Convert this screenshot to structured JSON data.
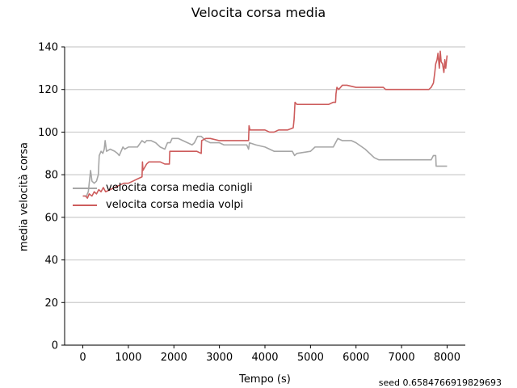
{
  "chart_data": {
    "type": "line",
    "title": "Velocita corsa media",
    "xlabel": "Tempo (s)",
    "ylabel": "media velocità corsa",
    "xlim": [
      -400,
      8400
    ],
    "ylim": [
      0,
      140
    ],
    "xticks": [
      0,
      1000,
      2000,
      3000,
      4000,
      5000,
      6000,
      7000,
      8000
    ],
    "yticks": [
      0,
      20,
      40,
      60,
      80,
      100,
      120,
      140
    ],
    "grid": "horizontal",
    "legend_position": "center-left",
    "annotation": "seed 0.6584766919829693",
    "series": [
      {
        "name": "velocita corsa media conigli",
        "color": "#a6a6a6",
        "points": [
          [
            0,
            70
          ],
          [
            80,
            70
          ],
          [
            120,
            72
          ],
          [
            150,
            78
          ],
          [
            170,
            82
          ],
          [
            200,
            77
          ],
          [
            250,
            76
          ],
          [
            300,
            77
          ],
          [
            340,
            80
          ],
          [
            360,
            89
          ],
          [
            400,
            91
          ],
          [
            440,
            90
          ],
          [
            470,
            92
          ],
          [
            490,
            96
          ],
          [
            520,
            91
          ],
          [
            600,
            92
          ],
          [
            700,
            91
          ],
          [
            760,
            90
          ],
          [
            800,
            89
          ],
          [
            840,
            91
          ],
          [
            880,
            93
          ],
          [
            920,
            92
          ],
          [
            1000,
            93
          ],
          [
            1100,
            93
          ],
          [
            1200,
            93
          ],
          [
            1300,
            96
          ],
          [
            1360,
            95
          ],
          [
            1400,
            96
          ],
          [
            1500,
            96
          ],
          [
            1600,
            95
          ],
          [
            1700,
            93
          ],
          [
            1800,
            92
          ],
          [
            1860,
            95
          ],
          [
            1920,
            95
          ],
          [
            1960,
            97
          ],
          [
            2100,
            97
          ],
          [
            2200,
            96
          ],
          [
            2300,
            95
          ],
          [
            2400,
            94
          ],
          [
            2450,
            95
          ],
          [
            2520,
            98
          ],
          [
            2600,
            98
          ],
          [
            2650,
            97
          ],
          [
            2700,
            96
          ],
          [
            2800,
            95
          ],
          [
            3000,
            95
          ],
          [
            3100,
            94
          ],
          [
            3200,
            94
          ],
          [
            3600,
            94
          ],
          [
            3640,
            92
          ],
          [
            3660,
            95
          ],
          [
            3800,
            94
          ],
          [
            4000,
            93
          ],
          [
            4200,
            91
          ],
          [
            4400,
            91
          ],
          [
            4600,
            91
          ],
          [
            4650,
            89
          ],
          [
            4700,
            90
          ],
          [
            5000,
            91
          ],
          [
            5100,
            93
          ],
          [
            5300,
            93
          ],
          [
            5500,
            93
          ],
          [
            5600,
            97
          ],
          [
            5700,
            96
          ],
          [
            5900,
            96
          ],
          [
            6000,
            95
          ],
          [
            6200,
            92
          ],
          [
            6400,
            88
          ],
          [
            6500,
            87
          ],
          [
            6700,
            87
          ],
          [
            7000,
            87
          ],
          [
            7300,
            87
          ],
          [
            7650,
            87
          ],
          [
            7700,
            89
          ],
          [
            7750,
            89
          ],
          [
            7760,
            84
          ],
          [
            7900,
            84
          ],
          [
            8000,
            84
          ]
        ]
      },
      {
        "name": "velocita corsa media volpi",
        "color": "#cd5c5c",
        "points": [
          [
            0,
            70
          ],
          [
            60,
            70
          ],
          [
            100,
            69
          ],
          [
            140,
            71
          ],
          [
            200,
            70
          ],
          [
            250,
            72
          ],
          [
            300,
            71
          ],
          [
            350,
            73
          ],
          [
            400,
            72
          ],
          [
            450,
            74
          ],
          [
            500,
            72
          ],
          [
            600,
            73
          ],
          [
            700,
            74
          ],
          [
            800,
            75
          ],
          [
            900,
            76
          ],
          [
            1000,
            76
          ],
          [
            1100,
            77
          ],
          [
            1200,
            78
          ],
          [
            1300,
            79
          ],
          [
            1310,
            86
          ],
          [
            1320,
            82
          ],
          [
            1400,
            85
          ],
          [
            1450,
            86
          ],
          [
            1700,
            86
          ],
          [
            1800,
            85
          ],
          [
            1900,
            85
          ],
          [
            1910,
            91
          ],
          [
            2100,
            91
          ],
          [
            2300,
            91
          ],
          [
            2400,
            91
          ],
          [
            2500,
            91
          ],
          [
            2600,
            90
          ],
          [
            2610,
            96
          ],
          [
            2700,
            97
          ],
          [
            2800,
            97
          ],
          [
            3000,
            96
          ],
          [
            3100,
            96
          ],
          [
            3200,
            96
          ],
          [
            3400,
            96
          ],
          [
            3640,
            96
          ],
          [
            3650,
            103
          ],
          [
            3670,
            101
          ],
          [
            3800,
            101
          ],
          [
            4000,
            101
          ],
          [
            4100,
            100
          ],
          [
            4200,
            100
          ],
          [
            4300,
            101
          ],
          [
            4500,
            101
          ],
          [
            4620,
            102
          ],
          [
            4640,
            106
          ],
          [
            4660,
            114
          ],
          [
            4700,
            113
          ],
          [
            4800,
            113
          ],
          [
            5000,
            113
          ],
          [
            5200,
            113
          ],
          [
            5400,
            113
          ],
          [
            5500,
            114
          ],
          [
            5550,
            114
          ],
          [
            5560,
            118
          ],
          [
            5580,
            121
          ],
          [
            5620,
            120
          ],
          [
            5700,
            122
          ],
          [
            5800,
            122
          ],
          [
            6000,
            121
          ],
          [
            6300,
            121
          ],
          [
            6600,
            121
          ],
          [
            6650,
            120
          ],
          [
            7000,
            120
          ],
          [
            7400,
            120
          ],
          [
            7600,
            120
          ],
          [
            7650,
            121
          ],
          [
            7700,
            123
          ],
          [
            7730,
            128
          ],
          [
            7750,
            132
          ],
          [
            7780,
            134
          ],
          [
            7800,
            137
          ],
          [
            7830,
            130
          ],
          [
            7850,
            138
          ],
          [
            7870,
            133
          ],
          [
            7900,
            132
          ],
          [
            7930,
            128
          ],
          [
            7950,
            134
          ],
          [
            7970,
            130
          ],
          [
            8000,
            136
          ]
        ]
      }
    ]
  }
}
